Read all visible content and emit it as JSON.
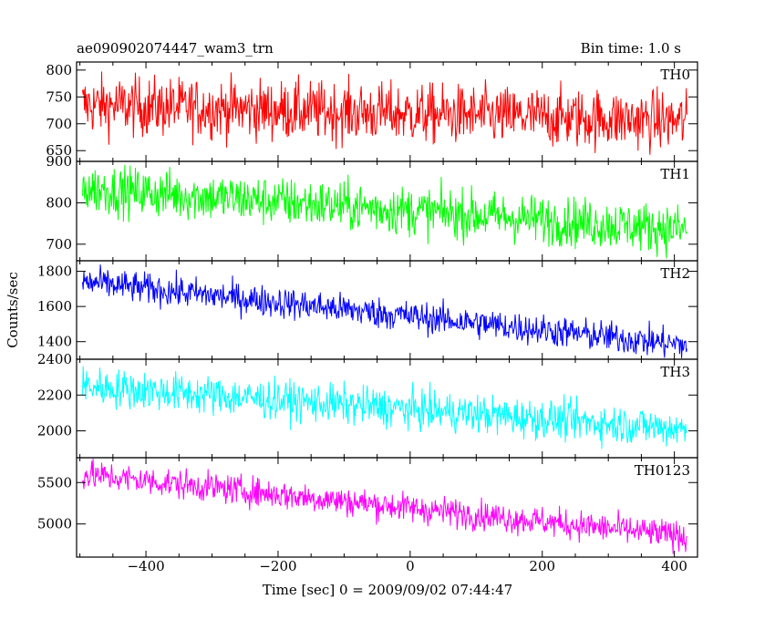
{
  "chart_data": {
    "type": "line",
    "title": "ae090902074447_wam3_trn",
    "subtitle": "Bin time: 1.0 s",
    "xlabel": "Time [sec] 0 = 2009/09/02 07:44:47",
    "ylabel": "Counts/sec",
    "xlim": [
      -505,
      435
    ],
    "x_range": [
      -496,
      419
    ],
    "xticks": [
      -400,
      -200,
      0,
      200,
      400
    ],
    "grid": false,
    "legend": "panel labels top-right",
    "panels": [
      {
        "name": "TH0",
        "color": "#ff0000",
        "ylim": [
          630,
          815
        ],
        "yticks": [
          650,
          700,
          750,
          800
        ],
        "trend_start": 735,
        "trend_end": 705,
        "noise": 28
      },
      {
        "name": "TH1",
        "color": "#00ff00",
        "ylim": [
          660,
          900
        ],
        "yticks": [
          700,
          800,
          900
        ],
        "trend_start": 835,
        "trend_end": 735,
        "noise": 30
      },
      {
        "name": "TH2",
        "color": "#0000ff",
        "ylim": [
          1300,
          1860
        ],
        "yticks": [
          1400,
          1600,
          1800
        ],
        "trend_start": 1740,
        "trend_end": 1380,
        "noise": 45
      },
      {
        "name": "TH3",
        "color": "#00ffff",
        "ylim": [
          1850,
          2400
        ],
        "yticks": [
          2000,
          2200,
          2400
        ],
        "trend_start": 2250,
        "trend_end": 2010,
        "noise": 55
      },
      {
        "name": "TH0123",
        "color": "#ff00ff",
        "ylim": [
          4600,
          5800
        ],
        "yticks": [
          5000,
          5500
        ],
        "trend_start": 5600,
        "trend_end": 4850,
        "noise": 90
      }
    ]
  }
}
